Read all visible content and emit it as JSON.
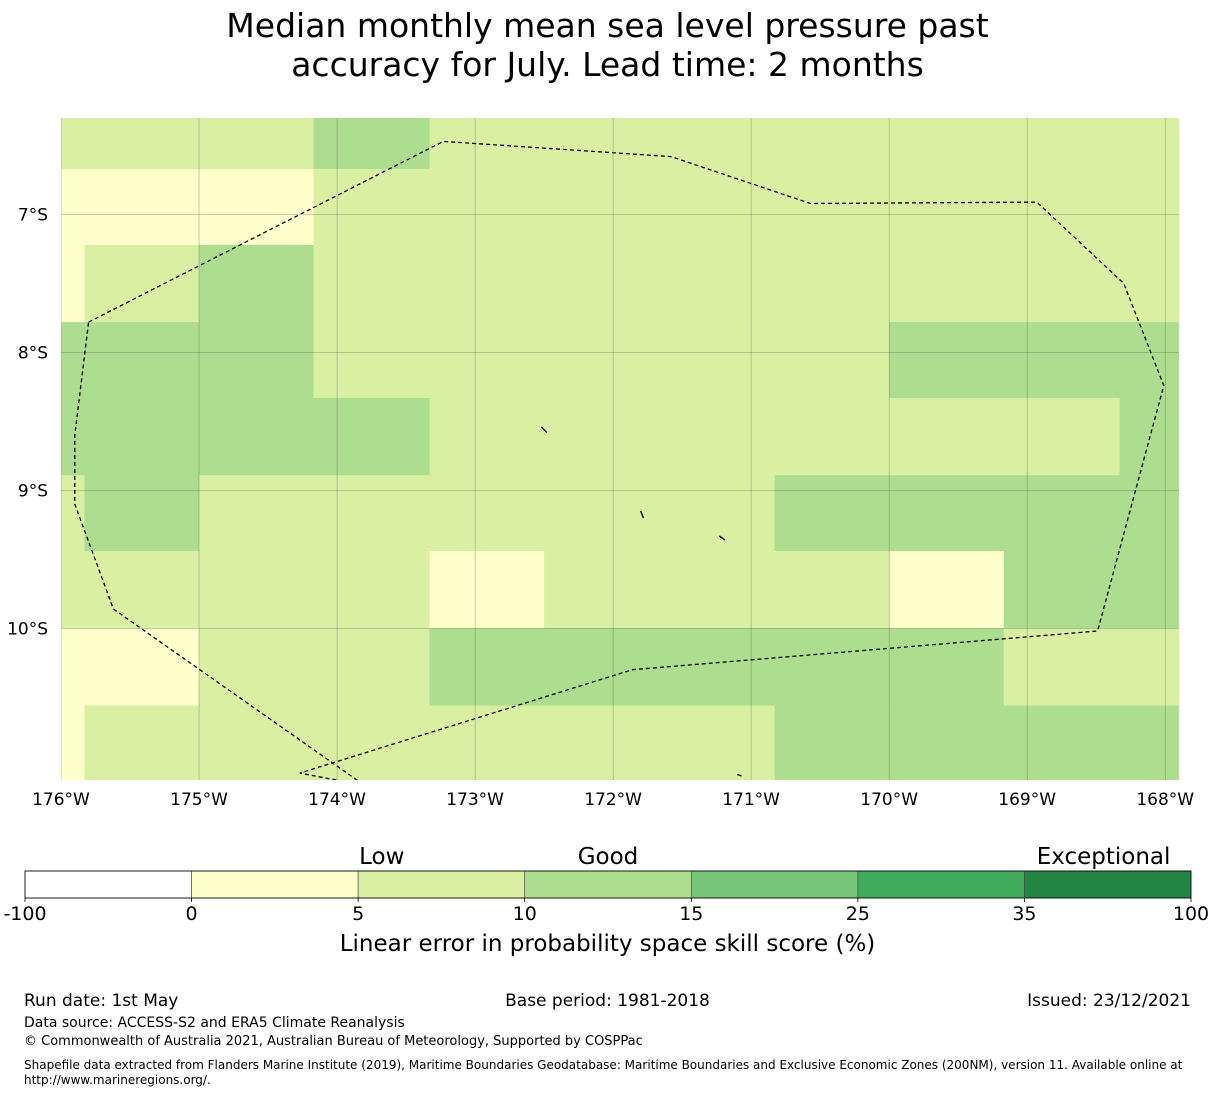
{
  "title": {
    "line1": "Median monthly mean sea level pressure past",
    "line2": "accuracy for July. Lead time: 2 months"
  },
  "map": {
    "lon_range": [
      -176,
      -167.9
    ],
    "lat_range": [
      -11.1,
      -6.3
    ],
    "x_ticks": [
      {
        "lon": -176,
        "label": "176°W"
      },
      {
        "lon": -175,
        "label": "175°W"
      },
      {
        "lon": -174,
        "label": "174°W"
      },
      {
        "lon": -173,
        "label": "173°W"
      },
      {
        "lon": -172,
        "label": "172°W"
      },
      {
        "lon": -171,
        "label": "171°W"
      },
      {
        "lon": -170,
        "label": "170°W"
      },
      {
        "lon": -169,
        "label": "169°W"
      },
      {
        "lon": -168,
        "label": "168°W"
      }
    ],
    "y_ticks": [
      {
        "lat": -7,
        "label": "7°S"
      },
      {
        "lat": -8,
        "label": "8°S"
      },
      {
        "lat": -9,
        "label": "9°S"
      },
      {
        "lat": -10,
        "label": "10°S"
      }
    ],
    "grid_lines": true,
    "category_colors": [
      "#ffffcc",
      "#d9f0a3",
      "#addd8e"
    ],
    "cells": [
      {
        "lon0": -176,
        "lon1": -174.17,
        "lat0": -6.67,
        "lat1": -6.3,
        "cat": 1
      },
      {
        "lon0": -174.17,
        "lon1": -173.33,
        "lat0": -6.67,
        "lat1": -6.3,
        "cat": 2
      },
      {
        "lon0": -173.33,
        "lon1": -167.9,
        "lat0": -6.67,
        "lat1": -6.3,
        "cat": 1
      },
      {
        "lon0": -176,
        "lon1": -174.17,
        "lat0": -7.22,
        "lat1": -6.67,
        "cat": 0
      },
      {
        "lon0": -174.17,
        "lon1": -167.9,
        "lat0": -7.22,
        "lat1": -6.67,
        "cat": 1
      },
      {
        "lon0": -176,
        "lon1": -175.83,
        "lat0": -7.78,
        "lat1": -7.22,
        "cat": 0
      },
      {
        "lon0": -175.83,
        "lon1": -175,
        "lat0": -7.78,
        "lat1": -7.22,
        "cat": 1
      },
      {
        "lon0": -175,
        "lon1": -174.17,
        "lat0": -7.78,
        "lat1": -7.22,
        "cat": 2
      },
      {
        "lon0": -174.17,
        "lon1": -167.9,
        "lat0": -7.78,
        "lat1": -7.22,
        "cat": 1
      },
      {
        "lon0": -176,
        "lon1": -174.17,
        "lat0": -8.33,
        "lat1": -7.78,
        "cat": 2
      },
      {
        "lon0": -174.17,
        "lon1": -170,
        "lat0": -8.33,
        "lat1": -7.78,
        "cat": 1
      },
      {
        "lon0": -170,
        "lon1": -167.9,
        "lat0": -8.33,
        "lat1": -7.78,
        "cat": 2
      },
      {
        "lon0": -176,
        "lon1": -173.33,
        "lat0": -8.89,
        "lat1": -8.33,
        "cat": 2
      },
      {
        "lon0": -173.33,
        "lon1": -168.33,
        "lat0": -8.89,
        "lat1": -8.33,
        "cat": 1
      },
      {
        "lon0": -168.33,
        "lon1": -167.9,
        "lat0": -8.89,
        "lat1": -8.33,
        "cat": 2
      },
      {
        "lon0": -176,
        "lon1": -175.83,
        "lat0": -9.44,
        "lat1": -8.89,
        "cat": 1
      },
      {
        "lon0": -175.83,
        "lon1": -175,
        "lat0": -9.44,
        "lat1": -8.89,
        "cat": 2
      },
      {
        "lon0": -175,
        "lon1": -170.83,
        "lat0": -9.44,
        "lat1": -8.89,
        "cat": 1
      },
      {
        "lon0": -170.83,
        "lon1": -167.9,
        "lat0": -9.44,
        "lat1": -8.89,
        "cat": 2
      },
      {
        "lon0": -176,
        "lon1": -173.33,
        "lat0": -10,
        "lat1": -9.44,
        "cat": 1
      },
      {
        "lon0": -173.33,
        "lon1": -172.5,
        "lat0": -10,
        "lat1": -9.44,
        "cat": 0
      },
      {
        "lon0": -172.5,
        "lon1": -170,
        "lat0": -10,
        "lat1": -9.44,
        "cat": 1
      },
      {
        "lon0": -170,
        "lon1": -169.17,
        "lat0": -10,
        "lat1": -9.44,
        "cat": 0
      },
      {
        "lon0": -169.17,
        "lon1": -167.9,
        "lat0": -10,
        "lat1": -9.44,
        "cat": 2
      },
      {
        "lon0": -176,
        "lon1": -175,
        "lat0": -10.56,
        "lat1": -10,
        "cat": 0
      },
      {
        "lon0": -175,
        "lon1": -173.33,
        "lat0": -10.56,
        "lat1": -10,
        "cat": 1
      },
      {
        "lon0": -173.33,
        "lon1": -169.17,
        "lat0": -10.56,
        "lat1": -10,
        "cat": 2
      },
      {
        "lon0": -169.17,
        "lon1": -167.9,
        "lat0": -10.56,
        "lat1": -10,
        "cat": 1
      },
      {
        "lon0": -176,
        "lon1": -175.83,
        "lat0": -11.1,
        "lat1": -10.56,
        "cat": 0
      },
      {
        "lon0": -175.83,
        "lon1": -170.83,
        "lat0": -11.1,
        "lat1": -10.56,
        "cat": 1
      },
      {
        "lon0": -170.83,
        "lon1": -167.9,
        "lat0": -11.1,
        "lat1": -10.56,
        "cat": 2
      }
    ],
    "eez_boundary": [
      [
        -175.8,
        -7.78
      ],
      [
        -173.23,
        -6.47
      ],
      [
        -171.58,
        -6.58
      ],
      [
        -170.57,
        -6.92
      ],
      [
        -168.93,
        -6.91
      ],
      [
        -168.3,
        -7.5
      ],
      [
        -168.01,
        -8.24
      ],
      [
        -168.49,
        -10.02
      ],
      [
        -171.86,
        -10.3
      ],
      [
        -174.27,
        -11.05
      ],
      [
        -173.8,
        -11.14
      ],
      [
        -175.62,
        -9.86
      ],
      [
        -175.9,
        -9.1
      ],
      [
        -175.9,
        -8.6
      ],
      [
        -175.8,
        -7.78
      ]
    ],
    "islands": [
      {
        "points": [
          [
            -172.52,
            -8.54
          ],
          [
            -172.48,
            -8.58
          ]
        ]
      },
      {
        "points": [
          [
            -171.8,
            -9.15
          ],
          [
            -171.78,
            -9.2
          ]
        ]
      },
      {
        "points": [
          [
            -171.23,
            -9.33
          ],
          [
            -171.19,
            -9.36
          ]
        ]
      },
      {
        "points": [
          [
            -171.1,
            -11.06
          ],
          [
            -171.07,
            -11.07
          ]
        ]
      }
    ]
  },
  "colorbar": {
    "category_labels": [
      {
        "text": "Low",
        "pos": 0.306
      },
      {
        "text": "Good",
        "pos": 0.5
      },
      {
        "text": "Exceptional",
        "pos": 0.925
      }
    ],
    "bins": [
      {
        "from": "-100",
        "to": "0",
        "color": "#ffffff"
      },
      {
        "from": "0",
        "to": "5",
        "color": "#ffffcc"
      },
      {
        "from": "5",
        "to": "10",
        "color": "#d9f0a3"
      },
      {
        "from": "10",
        "to": "15",
        "color": "#addd8e"
      },
      {
        "from": "15",
        "to": "25",
        "color": "#78c679"
      },
      {
        "from": "25",
        "to": "35",
        "color": "#41ab5d"
      },
      {
        "from": "35",
        "to": "100",
        "color": "#238443"
      }
    ],
    "tick_labels": [
      "-100",
      "0",
      "5",
      "10",
      "15",
      "25",
      "35",
      "100"
    ],
    "xlabel": "Linear error in probability space skill score (%)"
  },
  "footer": {
    "run_date": "Run date: 1st May",
    "base_period": "Base period: 1981-2018",
    "issued": "Issued: 23/12/2021",
    "data_source": "Data source: ACCESS-S2 and ERA5 Climate Reanalysis",
    "copyright": "© Commonwealth of Australia 2021, Australian Bureau of Meteorology, Supported by COSPPac",
    "shapefile": "Shapefile data extracted from Flanders Marine Institute (2019), Maritime Boundaries Geodatabase: Maritime Boundaries and Exclusive Economic Zones (200NM), version 11. Available online at http://www.marineregions.org/."
  }
}
